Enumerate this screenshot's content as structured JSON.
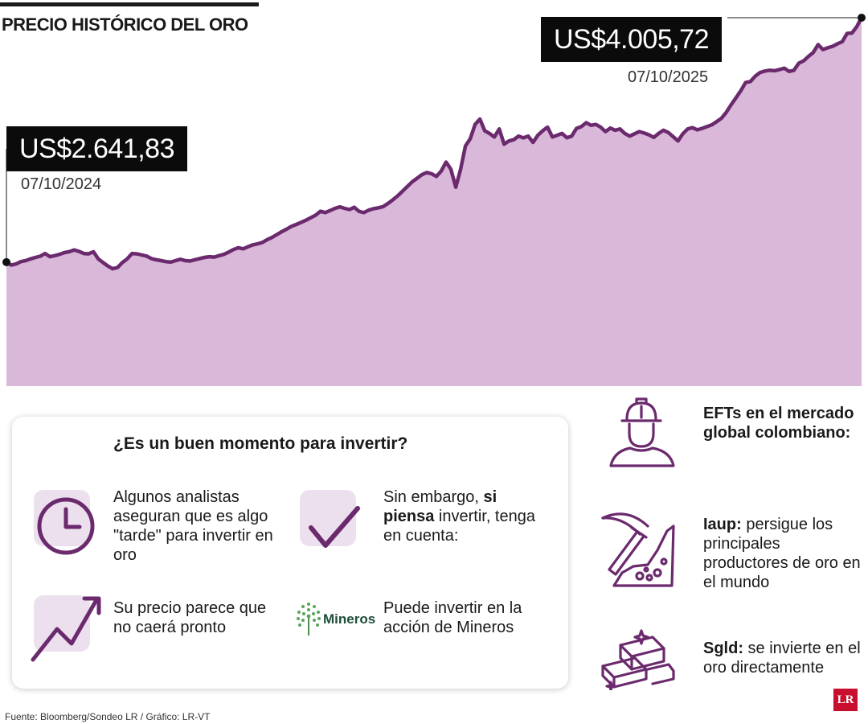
{
  "title": "PRECIO HISTÓRICO DEL ORO",
  "colors": {
    "area_fill": "#d9b8d9",
    "line": "#6b2a6e",
    "icon": "#6b2a6e",
    "tile": "#ede0ee"
  },
  "chart_data": {
    "type": "area",
    "series_values": [
      2641.83,
      2625,
      2632,
      2645,
      2650,
      2660,
      2668,
      2675,
      2690,
      2672,
      2678,
      2685,
      2695,
      2700,
      2710,
      2702,
      2690,
      2688,
      2700,
      2660,
      2640,
      2620,
      2605,
      2612,
      2640,
      2660,
      2690,
      2688,
      2682,
      2676,
      2662,
      2655,
      2650,
      2645,
      2642,
      2650,
      2658,
      2650,
      2648,
      2655,
      2662,
      2668,
      2672,
      2670,
      2678,
      2685,
      2698,
      2712,
      2722,
      2716,
      2728,
      2738,
      2744,
      2752,
      2768,
      2780,
      2796,
      2812,
      2826,
      2842,
      2852,
      2864,
      2876,
      2890,
      2904,
      2926,
      2918,
      2930,
      2942,
      2950,
      2942,
      2935,
      2948,
      2925,
      2918,
      2932,
      2940,
      2945,
      2952,
      2970,
      2990,
      3012,
      3038,
      3064,
      3090,
      3110,
      3130,
      3142,
      3135,
      3120,
      3150,
      3200,
      3160,
      3060,
      3160,
      3290,
      3330,
      3410,
      3440,
      3375,
      3360,
      3340,
      3385,
      3300,
      3318,
      3325,
      3345,
      3335,
      3345,
      3310,
      3350,
      3375,
      3395,
      3340,
      3350,
      3360,
      3336,
      3345,
      3388,
      3398,
      3420,
      3405,
      3410,
      3395,
      3370,
      3390,
      3378,
      3385,
      3360,
      3345,
      3358,
      3370,
      3362,
      3352,
      3338,
      3360,
      3378,
      3365,
      3342,
      3318,
      3358,
      3385,
      3392,
      3380,
      3388,
      3398,
      3408,
      3426,
      3445,
      3478,
      3520,
      3558,
      3598,
      3644,
      3650,
      3680,
      3700,
      3708,
      3712,
      3710,
      3716,
      3724,
      3706,
      3712,
      3752,
      3765,
      3790,
      3812,
      3856,
      3828,
      3838,
      3846,
      3860,
      3872,
      3918,
      3920,
      3956,
      4005.72
    ],
    "annotations": [
      {
        "label": "US$2.641,83",
        "date": "07/10/2024"
      },
      {
        "label": "US$4.005,72",
        "date": "07/10/2025"
      }
    ],
    "ylim": [
      1950,
      4005.72
    ]
  },
  "card": {
    "question": "¿Es un buen momento para invertir?",
    "items": [
      {
        "icon": "clock-icon",
        "text": "Algunos analistas aseguran que es algo \"tarde\" para invertir en oro"
      },
      {
        "icon": "checkmark-icon",
        "text_before": "Sin embargo, ",
        "text_bold": "si piensa",
        "text_after": " invertir, tenga en cuenta:"
      },
      {
        "icon": "trend-up-icon",
        "text": "Su precio parece que no caerá pronto"
      },
      {
        "icon": "mineros-logo",
        "logo_text": "Mineros",
        "text": "Puede invertir en la acción de Mineros"
      }
    ]
  },
  "side": {
    "title": "EFTs en el mercado global colombiano:",
    "items": [
      {
        "icon": "miner-icon"
      },
      {
        "icon": "pickaxe-icon",
        "bold": "Iaup:",
        "text": " persigue los principales productores de oro en el mundo"
      },
      {
        "icon": "gold-bars-icon",
        "bold": "Sgld:",
        "text": " se invierte en el oro directamente"
      }
    ]
  },
  "source": "Fuente: Bloomberg/Sondeo LR  / Gráfico: LR-VT",
  "logo": "LR"
}
